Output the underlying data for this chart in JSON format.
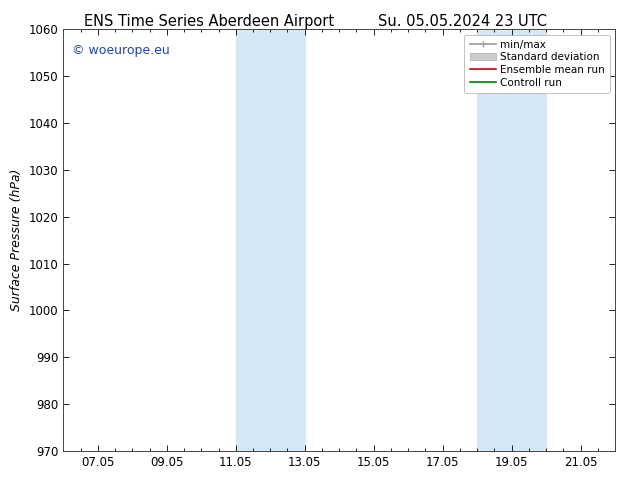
{
  "title_left": "ENS Time Series Aberdeen Airport",
  "title_right": "Su. 05.05.2024 23 UTC",
  "ylabel": "Surface Pressure (hPa)",
  "ylim": [
    970,
    1060
  ],
  "yticks": [
    970,
    980,
    990,
    1000,
    1010,
    1020,
    1030,
    1040,
    1050,
    1060
  ],
  "xlim": [
    0,
    16
  ],
  "xtick_labels": [
    "07.05",
    "09.05",
    "11.05",
    "13.05",
    "15.05",
    "17.05",
    "19.05",
    "21.05"
  ],
  "xtick_positions": [
    1,
    3,
    5,
    7,
    9,
    11,
    13,
    15
  ],
  "shaded_bands": [
    {
      "x_start": 5,
      "x_end": 7
    },
    {
      "x_start": 12,
      "x_end": 14
    }
  ],
  "shaded_color": "#d4e8f5",
  "background_color": "#ffffff",
  "plot_bg_color": "#ffffff",
  "watermark_text": "© woeurope.eu",
  "watermark_color": "#1a44bb",
  "legend_items": [
    {
      "label": "min/max",
      "color": "#999999",
      "lw": 1.2,
      "ls": "-",
      "marker": "|"
    },
    {
      "label": "Standard deviation",
      "color": "#cccccc",
      "lw": 5,
      "ls": "-",
      "marker": ""
    },
    {
      "label": "Ensemble mean run",
      "color": "#cc0000",
      "lw": 1.2,
      "ls": "-",
      "marker": ""
    },
    {
      "label": "Controll run",
      "color": "#008000",
      "lw": 1.2,
      "ls": "-",
      "marker": ""
    }
  ],
  "title_fontsize": 10.5,
  "ylabel_fontsize": 9,
  "tick_fontsize": 8.5,
  "watermark_fontsize": 9,
  "legend_fontsize": 7.5
}
